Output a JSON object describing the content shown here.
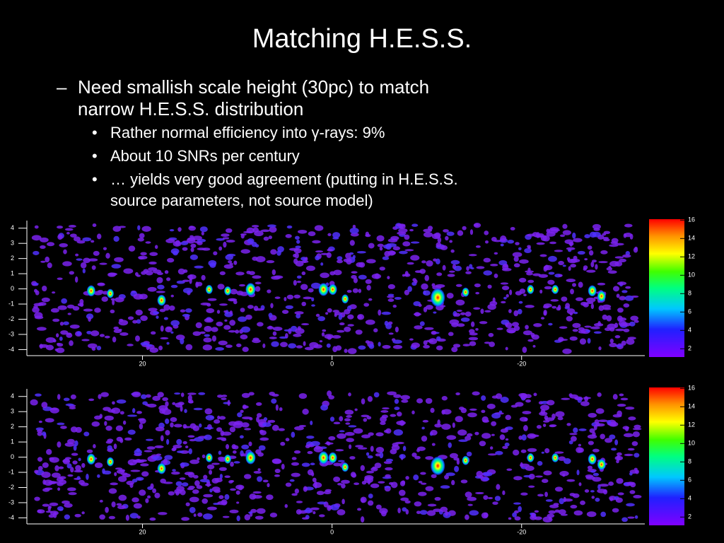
{
  "title": "Matching H.E.S.S.",
  "bullets": [
    {
      "text": "Need smallish scale height (30pc) to match narrow H.E.S.S. distribution",
      "children": [
        "Rather normal efficiency into γ-rays: 9%",
        "About 10 SNRs per century",
        "… yields very good agreement (putting in H.E.S.S. source parameters, not source model)"
      ]
    }
  ],
  "maps": [
    {
      "xlim": [
        32.2,
        -33
      ],
      "xticks": [
        20,
        0,
        -20
      ],
      "ylim": [
        -4.4,
        4.5
      ],
      "yticks": [
        4,
        3,
        2,
        1,
        0,
        -1,
        -2,
        -3,
        -4
      ],
      "colorbar_lim": [
        1.1,
        16.1
      ],
      "colorbar_ticks": [
        2,
        4,
        6,
        8,
        10,
        12,
        14,
        16
      ]
    },
    {
      "xlim": [
        32.2,
        -33
      ],
      "xticks": [
        20,
        0,
        -20
      ],
      "ylim": [
        -4.4,
        4.5
      ],
      "yticks": [
        4,
        3,
        2,
        1,
        0,
        -1,
        -2,
        -3,
        -4
      ],
      "colorbar_lim": [
        1.1,
        16.1
      ],
      "colorbar_ticks": [
        2,
        4,
        6,
        8,
        10,
        12,
        14,
        16
      ]
    }
  ]
}
